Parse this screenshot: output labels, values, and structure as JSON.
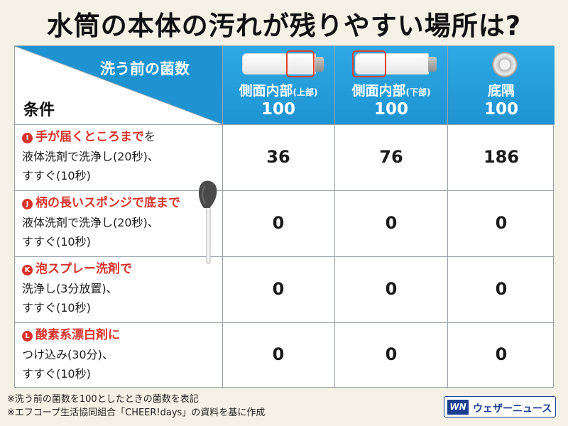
{
  "title": "水筒の本体の汚れが残りやすい場所は?",
  "header": {
    "corner_top": "洗う前の菌数",
    "corner_left": "条件",
    "columns": [
      {
        "name": "側面内部",
        "sub": "(上部)",
        "base": "100",
        "icon": "bottle-upper-icon"
      },
      {
        "name": "側面内部",
        "sub": "(下部)",
        "base": "100",
        "icon": "bottle-lower-icon"
      },
      {
        "name": "底隅",
        "sub": "",
        "base": "100",
        "icon": "bottle-bottom-icon"
      }
    ]
  },
  "rows": [
    {
      "badge": "I",
      "head": "手が届くところまで",
      "head_suffix": "を",
      "line2": "液体洗剤で洗浄し(20秒)、",
      "line3": "すすぐ(10秒)",
      "values": [
        "36",
        "76",
        "186"
      ]
    },
    {
      "badge": "J",
      "head": "柄の長いスポンジで底まで",
      "head_suffix": "",
      "line2": "液体洗剤で洗浄し(20秒)、",
      "line3": "すすぐ(10秒)",
      "values": [
        "0",
        "0",
        "0"
      ]
    },
    {
      "badge": "K",
      "head": "泡スプレー洗剤で",
      "head_suffix": "",
      "line2": "洗浄し(3分放置)、",
      "line3": "すすぐ(10秒)",
      "values": [
        "0",
        "0",
        "0"
      ]
    },
    {
      "badge": "L",
      "head": "酸素系漂白剤に",
      "head_suffix": "",
      "line2": "つけ込み(30分)、",
      "line3": "すすぐ(10秒)",
      "values": [
        "0",
        "0",
        "0"
      ]
    }
  ],
  "notes": [
    "※洗う前の菌数を100としたときの菌数を表記",
    "※エフコープ生活協同組合「CHEER!days」の資料を基に作成"
  ],
  "logo": {
    "mark": "WN",
    "text": "ウェザーニュース"
  },
  "colors": {
    "header": "#1f93d2",
    "accent_red": "#d8322a",
    "background": "#f5f1e6"
  }
}
